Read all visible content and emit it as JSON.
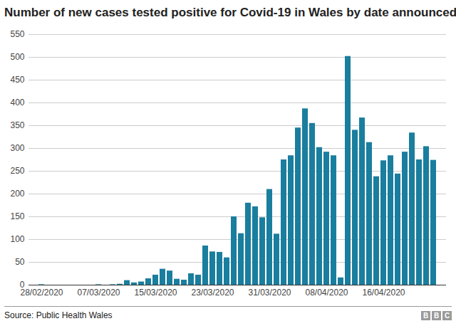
{
  "chart_data": {
    "type": "bar",
    "title": "Number of new cases tested positive for Covid-19 in Wales by date announced",
    "caption": "Source: Public Health Wales",
    "logo": "BBC",
    "categories": [
      "28/02/2020",
      null,
      null,
      null,
      null,
      null,
      null,
      null,
      "07/03/2020",
      null,
      null,
      null,
      null,
      null,
      null,
      null,
      "15/03/2020",
      null,
      null,
      null,
      null,
      null,
      null,
      null,
      "23/03/2020",
      null,
      null,
      null,
      null,
      null,
      null,
      null,
      "31/03/2020",
      null,
      null,
      null,
      null,
      null,
      null,
      null,
      "08/04/2020",
      null,
      null,
      null,
      null,
      null,
      null,
      null,
      "16/04/2020",
      null,
      null,
      null,
      null,
      null,
      null,
      null
    ],
    "values": [
      1,
      0,
      0,
      0,
      0,
      0,
      0,
      0,
      1,
      0,
      1,
      2,
      10,
      5,
      7,
      14,
      22,
      35,
      31,
      13,
      11,
      25,
      22,
      86,
      73,
      72,
      60,
      150,
      113,
      180,
      172,
      148,
      210,
      112,
      275,
      284,
      345,
      387,
      355,
      302,
      292,
      284,
      16,
      502,
      340,
      367,
      313,
      238,
      273,
      284,
      244,
      292,
      334,
      275,
      304,
      274
    ],
    "color": "#1a7e9e",
    "ylim": [
      0,
      550
    ],
    "yticks": [
      0,
      50,
      100,
      150,
      200,
      250,
      300,
      350,
      400,
      450,
      500,
      550
    ],
    "grid": true
  }
}
